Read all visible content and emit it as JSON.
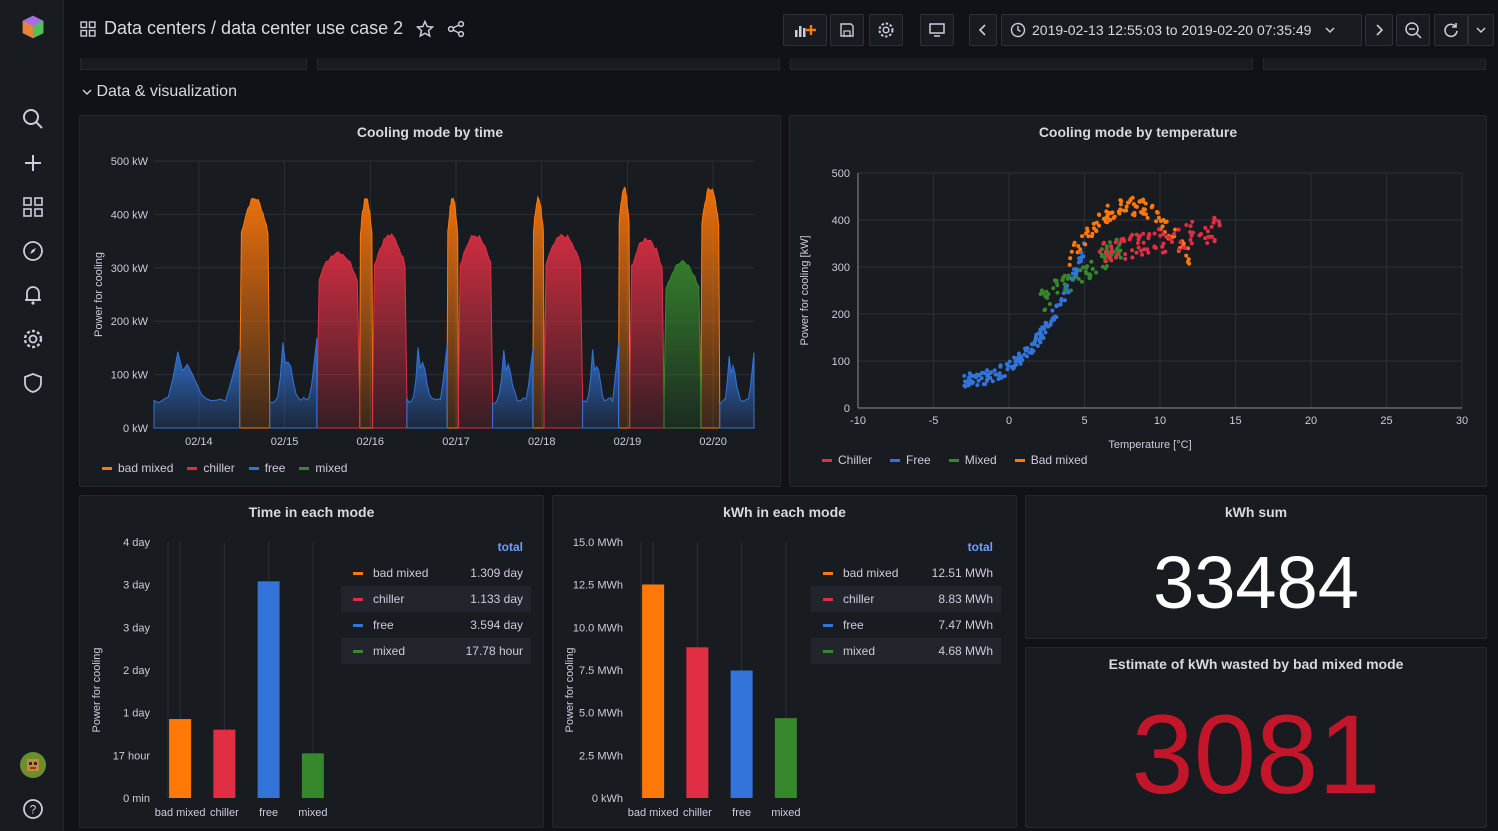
{
  "breadcrumb": "Data centers / data center use case 2",
  "time_range": "2019-02-13 12:55:03 to 2019-02-20 07:35:49",
  "row_title": "Data & visualization",
  "colors": {
    "bad_mixed": "#ff780a",
    "chiller": "#e02f44",
    "free": "#3274d9",
    "mixed": "#37872d",
    "wasted": "#c4162a"
  },
  "panels": {
    "cooling_time": {
      "title": "Cooling mode by time"
    },
    "cooling_temp": {
      "title": "Cooling mode by temperature"
    },
    "time_mode": {
      "title": "Time in each mode"
    },
    "kwh_mode": {
      "title": "kWh in each mode"
    },
    "kwh_sum": {
      "title": "kWh sum",
      "value": "33484"
    },
    "wasted": {
      "title": "Estimate of kWh wasted by bad mixed mode",
      "value": "3081"
    }
  },
  "legend_time": [
    "bad mixed",
    "chiller",
    "free",
    "mixed"
  ],
  "legend_temp": [
    "Chiller",
    "Free",
    "Mixed",
    "Bad mixed"
  ],
  "table_time": {
    "header": "total",
    "rows": [
      {
        "name": "bad mixed",
        "value": "1.309 day"
      },
      {
        "name": "chiller",
        "value": "1.133 day"
      },
      {
        "name": "free",
        "value": "3.594 day"
      },
      {
        "name": "mixed",
        "value": "17.78 hour"
      }
    ]
  },
  "table_kwh": {
    "header": "total",
    "rows": [
      {
        "name": "bad mixed",
        "value": "12.51 MWh"
      },
      {
        "name": "chiller",
        "value": "8.83 MWh"
      },
      {
        "name": "free",
        "value": "7.47 MWh"
      },
      {
        "name": "mixed",
        "value": "4.68 MWh"
      }
    ]
  },
  "chart_data": [
    {
      "type": "area",
      "title": "Cooling mode by time",
      "ylabel": "Power for cooling",
      "ylim": [
        0,
        500
      ],
      "yticks": [
        "0 kW",
        "100 kW",
        "200 kW",
        "300 kW",
        "400 kW",
        "500 kW"
      ],
      "xticks": [
        "02/14",
        "02/15",
        "02/16",
        "02/17",
        "02/18",
        "02/19",
        "02/20"
      ],
      "series": [
        {
          "name": "bad mixed",
          "segments": [
            [
              1.0,
              1.35,
              430
            ],
            [
              2.4,
              2.55,
              430
            ],
            [
              3.42,
              3.55,
              430
            ],
            [
              4.42,
              4.55,
              430
            ],
            [
              5.42,
              5.55,
              450
            ],
            [
              6.38,
              6.6,
              450
            ]
          ]
        },
        {
          "name": "chiller",
          "segments": [
            [
              1.9,
              2.4,
              330
            ],
            [
              2.55,
              2.95,
              360
            ],
            [
              3.55,
              3.95,
              360
            ],
            [
              4.55,
              5.0,
              360
            ],
            [
              5.55,
              5.95,
              355
            ]
          ]
        },
        {
          "name": "free",
          "segments": [
            [
              0,
              1.0,
              210
            ],
            [
              1.35,
              1.9,
              240
            ],
            [
              2.95,
              3.42,
              220
            ],
            [
              3.95,
              4.42,
              210
            ],
            [
              5.0,
              5.42,
              220
            ],
            [
              6.6,
              7.0,
              200
            ]
          ]
        },
        {
          "name": "mixed",
          "segments": [
            [
              5.95,
              6.38,
              310
            ]
          ]
        }
      ]
    },
    {
      "type": "scatter",
      "title": "Cooling mode by temperature",
      "xlabel": "Temperature [°C]",
      "ylabel": "Power for cooling [kW]",
      "xlim": [
        -10,
        30
      ],
      "ylim": [
        0,
        500
      ],
      "xticks": [
        -10,
        -5,
        0,
        5,
        10,
        15,
        20,
        25,
        30
      ],
      "yticks": [
        0,
        100,
        200,
        300,
        400,
        500
      ],
      "series": [
        {
          "name": "Free",
          "xrange": [
            -3,
            5
          ],
          "yrange": [
            40,
            330
          ]
        },
        {
          "name": "Mixed",
          "xrange": [
            2,
            8
          ],
          "yrange": [
            180,
            330
          ]
        },
        {
          "name": "Bad mixed",
          "xrange": [
            4,
            12
          ],
          "yrange": [
            300,
            455
          ]
        },
        {
          "name": "Chiller",
          "xrange": [
            6,
            14
          ],
          "yrange": [
            270,
            420
          ]
        }
      ]
    },
    {
      "type": "bar",
      "title": "Time in each mode",
      "ylabel": "Power for cooling",
      "categories": [
        "bad mixed",
        "chiller",
        "free",
        "mixed"
      ],
      "values": [
        1.309,
        1.133,
        3.594,
        0.741
      ],
      "yticks": [
        "0 min",
        "17 hour",
        "1 day",
        "2 day",
        "3 day",
        "3 day",
        "4 day"
      ],
      "ylim": [
        0,
        4.5
      ]
    },
    {
      "type": "bar",
      "title": "kWh in each mode",
      "ylabel": "Power for cooling",
      "categories": [
        "bad mixed",
        "chiller",
        "free",
        "mixed"
      ],
      "values": [
        12.51,
        8.83,
        7.47,
        4.68
      ],
      "yticks": [
        "0 kWh",
        "2.5 MWh",
        "5.0 MWh",
        "7.5 MWh",
        "10.0 MWh",
        "12.5 MWh",
        "15.0 MWh"
      ],
      "ylim": [
        0,
        15
      ]
    }
  ]
}
